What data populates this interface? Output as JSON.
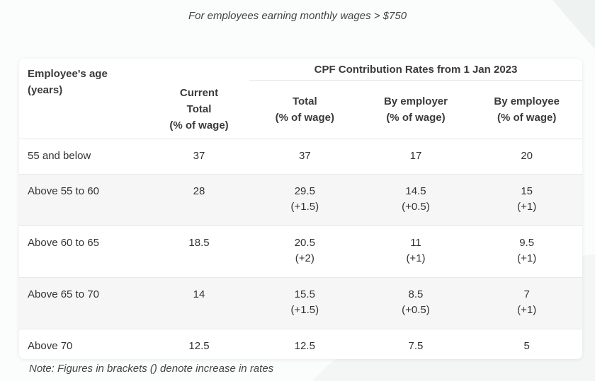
{
  "subtitle": "For employees earning monthly wages > $750",
  "table": {
    "headers": {
      "age": [
        "Employee's age",
        "(years)"
      ],
      "current": [
        "Current",
        "Total",
        "(% of wage)"
      ],
      "group": "CPF Contribution Rates from 1 Jan 2023",
      "total": [
        "Total",
        "(% of wage)"
      ],
      "employer": [
        "By employer",
        "(% of wage)"
      ],
      "employee": [
        "By employee",
        "(% of wage)"
      ]
    },
    "rows": [
      {
        "age": "55 and below",
        "current": "37",
        "total": "37",
        "total_inc": "",
        "employer": "17",
        "employer_inc": "",
        "employee": "20",
        "employee_inc": ""
      },
      {
        "age": "Above 55 to 60",
        "current": "28",
        "total": "29.5",
        "total_inc": "(+1.5)",
        "employer": "14.5",
        "employer_inc": "(+0.5)",
        "employee": "15",
        "employee_inc": "(+1)"
      },
      {
        "age": "Above 60 to 65",
        "current": "18.5",
        "total": "20.5",
        "total_inc": "(+2)",
        "employer": "11",
        "employer_inc": "(+1)",
        "employee": "9.5",
        "employee_inc": "(+1)"
      },
      {
        "age": "Above 65 to 70",
        "current": "14",
        "total": "15.5",
        "total_inc": "(+1.5)",
        "employer": "8.5",
        "employer_inc": "(+0.5)",
        "employee": "7",
        "employee_inc": "(+1)"
      },
      {
        "age": "Above 70",
        "current": "12.5",
        "total": "12.5",
        "total_inc": "",
        "employer": "7.5",
        "employer_inc": "",
        "employee": "5",
        "employee_inc": ""
      }
    ]
  },
  "note": "Note: Figures in brackets () denote increase in rates"
}
